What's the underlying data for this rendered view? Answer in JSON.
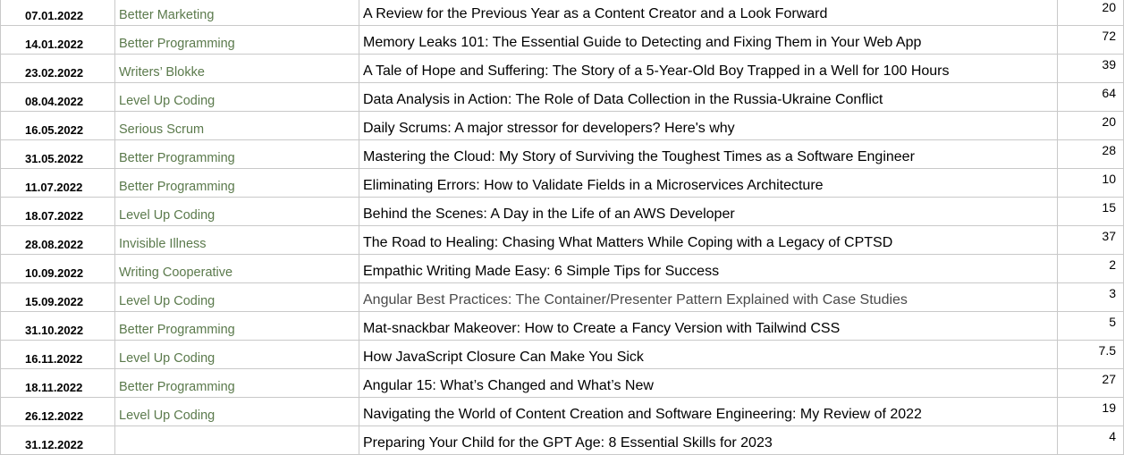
{
  "rows": [
    {
      "date": "07.01.2022",
      "publication": "Better Marketing",
      "title": "A Review for the Previous Year as a Content Creator and a Look Forward",
      "value": "20"
    },
    {
      "date": "14.01.2022",
      "publication": "Better Programming",
      "title": "Memory Leaks 101: The Essential Guide to Detecting and Fixing Them in Your Web App",
      "value": "72"
    },
    {
      "date": "23.02.2022",
      "publication": "Writers’ Blokke",
      "title": "A Tale of Hope and Suffering: The Story of a 5-Year-Old Boy Trapped in a Well for 100 Hours",
      "value": "39"
    },
    {
      "date": "08.04.2022",
      "publication": "Level Up Coding",
      "title": "Data Analysis in Action: The Role of Data Collection in the Russia-Ukraine Conflict",
      "value": "64"
    },
    {
      "date": "16.05.2022",
      "publication": "Serious Scrum",
      "title": "Daily Scrums: A major stressor for developers? Here's why",
      "value": "20"
    },
    {
      "date": "31.05.2022",
      "publication": "Better Programming",
      "title": "Mastering the Cloud: My Story of Surviving the Toughest Times as a Software Engineer",
      "value": "28"
    },
    {
      "date": "11.07.2022",
      "publication": "Better Programming",
      "title": "Eliminating Errors: How to Validate Fields in a Microservices Architecture",
      "value": "10"
    },
    {
      "date": "18.07.2022",
      "publication": "Level Up Coding",
      "title": "Behind the Scenes: A Day in the Life of an AWS Developer",
      "value": "15"
    },
    {
      "date": "28.08.2022",
      "publication": "Invisible Illness",
      "title": "The Road to Healing: Chasing What Matters While Coping with a Legacy of CPTSD",
      "value": "37"
    },
    {
      "date": "10.09.2022",
      "publication": "Writing Cooperative",
      "title": "Empathic Writing Made Easy: 6 Simple Tips for Success",
      "value": "2"
    },
    {
      "date": "15.09.2022",
      "publication": "Level Up Coding",
      "title": "Angular Best Practices: The Container/Presenter Pattern Explained with Case Studies",
      "value": "3"
    },
    {
      "date": "31.10.2022",
      "publication": "Better Programming",
      "title": "Mat-snackbar Makeover: How to Create a Fancy Version with Tailwind CSS",
      "value": "5"
    },
    {
      "date": "16.11.2022",
      "publication": "Level Up Coding",
      "title": "How JavaScript Closure Can Make You Sick",
      "value": "7.5"
    },
    {
      "date": "18.11.2022",
      "publication": "Better Programming",
      "title": "Angular 15: What’s Changed and What’s New",
      "value": "27"
    },
    {
      "date": "26.12.2022",
      "publication": "Level Up Coding",
      "title": "Navigating the World of Content Creation and Software Engineering: My Review of 2022",
      "value": "19"
    },
    {
      "date": "31.12.2022",
      "publication": "",
      "title": "Preparing Your Child for the GPT Age: 8 Essential Skills for 2023",
      "value": "4"
    }
  ]
}
